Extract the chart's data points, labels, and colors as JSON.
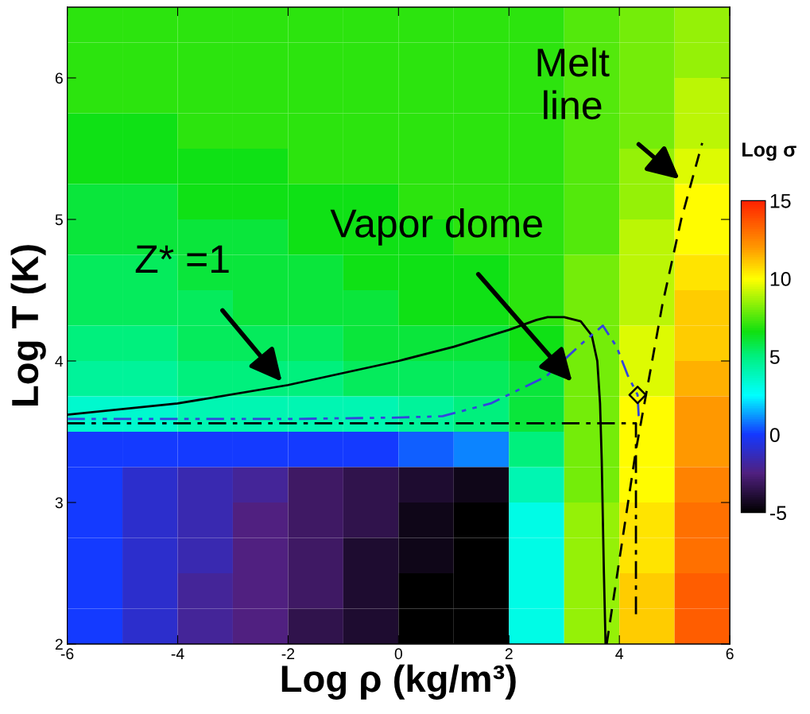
{
  "chart_data": [
    {
      "type": "heatmap",
      "clabel": "Log σ",
      "clim": [
        -5,
        15
      ],
      "cticks": [
        -5,
        0,
        5,
        10,
        15
      ],
      "tick_labels": false,
      "categories": [
        null,
        null,
        null,
        null,
        null,
        null,
        null,
        null,
        null,
        null,
        null,
        null
      ],
      "y_categories": [
        null,
        null,
        null,
        null,
        null,
        null,
        null,
        null,
        null,
        null,
        null,
        null,
        null,
        null,
        null,
        null,
        null,
        null
      ],
      "cells": [
        [
          7,
          7,
          7,
          7,
          7,
          7,
          7,
          7,
          7,
          7.5,
          8,
          8.5
        ],
        [
          7,
          7,
          7,
          7,
          7,
          7,
          7,
          7,
          7,
          7.5,
          8,
          8.5
        ],
        [
          7,
          7,
          7,
          7,
          7,
          7,
          7,
          7,
          7,
          7.5,
          8,
          9
        ],
        [
          6.5,
          6.5,
          7,
          7,
          7,
          7,
          7,
          7,
          7,
          7.5,
          8,
          9
        ],
        [
          6.5,
          6.5,
          6.5,
          6.5,
          7,
          7,
          7,
          7,
          7,
          7.5,
          8.5,
          9.5
        ],
        [
          6,
          6,
          6.5,
          6.5,
          6.5,
          6.5,
          7,
          7,
          7,
          7.5,
          8.5,
          10
        ],
        [
          6,
          6,
          6,
          6,
          6.5,
          6.5,
          6.5,
          7,
          7,
          7.5,
          9,
          10
        ],
        [
          5.5,
          5.5,
          6,
          6,
          6,
          6.5,
          6.5,
          6.5,
          7,
          8,
          9,
          10.5
        ],
        [
          5.5,
          5.5,
          5.5,
          6,
          6,
          6,
          6.5,
          6.5,
          7,
          8,
          9,
          11
        ],
        [
          5,
          5,
          5.5,
          5.5,
          5.5,
          6,
          6,
          6,
          6.5,
          8,
          9.5,
          11
        ],
        [
          4.5,
          4.5,
          5,
          5,
          5,
          5.5,
          5.5,
          5.5,
          6,
          8,
          9.5,
          11.5
        ],
        [
          3.5,
          3.5,
          4,
          4,
          4,
          4,
          4.5,
          5,
          6,
          8,
          10,
          12
        ],
        [
          0,
          0,
          0,
          0,
          0,
          0,
          0.5,
          1,
          5,
          8,
          10,
          12
        ],
        [
          0,
          -1,
          -1.5,
          -2,
          -3,
          -3.5,
          -4,
          -4.5,
          4,
          8,
          10,
          12.5
        ],
        [
          0,
          -1,
          -1.5,
          -2.5,
          -3,
          -3.5,
          -4.5,
          -5,
          3,
          8.5,
          10.5,
          13
        ],
        [
          0,
          -1,
          -1.5,
          -2.5,
          -3,
          -4,
          -4.5,
          -5,
          3,
          8.5,
          10.5,
          13
        ],
        [
          0,
          -1,
          -2,
          -2.5,
          -3,
          -4,
          -5,
          -5,
          3,
          8.5,
          11,
          13.5
        ],
        [
          0,
          -1,
          -2,
          -2.5,
          -3.5,
          -4,
          -5,
          -5,
          3,
          8.5,
          11,
          13.5
        ]
      ]
    },
    {
      "type": "line",
      "xlabel": "Log ρ (kg/m³)",
      "ylabel": "Log T (K)",
      "xlim": [
        -6,
        6
      ],
      "ylim": [
        2,
        6.5
      ],
      "xticks": [
        -6,
        -4,
        -2,
        0,
        2,
        4,
        6
      ],
      "yticks": [
        2,
        3,
        4,
        5,
        6
      ],
      "series": [
        {
          "type": "line",
          "color": "#000000",
          "line_style": "solid",
          "x": [
            -6,
            -4,
            -2,
            0,
            1,
            2,
            2.5,
            2.7,
            3,
            3.3,
            3.5,
            3.6,
            3.65,
            3.68,
            3.72,
            3.75
          ],
          "values": [
            3.62,
            3.7,
            3.83,
            4.0,
            4.1,
            4.22,
            4.29,
            4.31,
            4.31,
            4.28,
            4.18,
            4.0,
            3.7,
            3.3,
            2.5,
            2.0
          ]
        },
        {
          "type": "line",
          "color": "#3344dd",
          "line_style": "dashdotdot",
          "x": [
            -6,
            -2,
            0,
            0.8,
            1.67,
            2.67,
            3.34,
            3.7,
            3.95,
            4.15,
            4.33,
            4.35
          ],
          "values": [
            3.59,
            3.59,
            3.6,
            3.61,
            3.7,
            3.89,
            4.13,
            4.25,
            4.1,
            3.9,
            3.76,
            3.61
          ]
        },
        {
          "type": "line",
          "color": "#000000",
          "line_style": "dashdot",
          "x": [
            -6,
            4.3,
            4.3
          ],
          "values": [
            3.56,
            3.56,
            2.19
          ]
        },
        {
          "type": "line",
          "color": "#000000",
          "line_style": "dashed",
          "x": [
            3.77,
            4.3,
            4.78,
            5.12,
            5.5
          ],
          "values": [
            2.0,
            3.37,
            4.4,
            5.0,
            5.54
          ]
        },
        {
          "type": "scatter",
          "color": "#000000",
          "marker": "diamond",
          "x": [
            4.33
          ],
          "values": [
            3.76
          ]
        }
      ],
      "annotations": [
        "Z* =1",
        "Vapor dome",
        "Melt\nline"
      ]
    }
  ]
}
